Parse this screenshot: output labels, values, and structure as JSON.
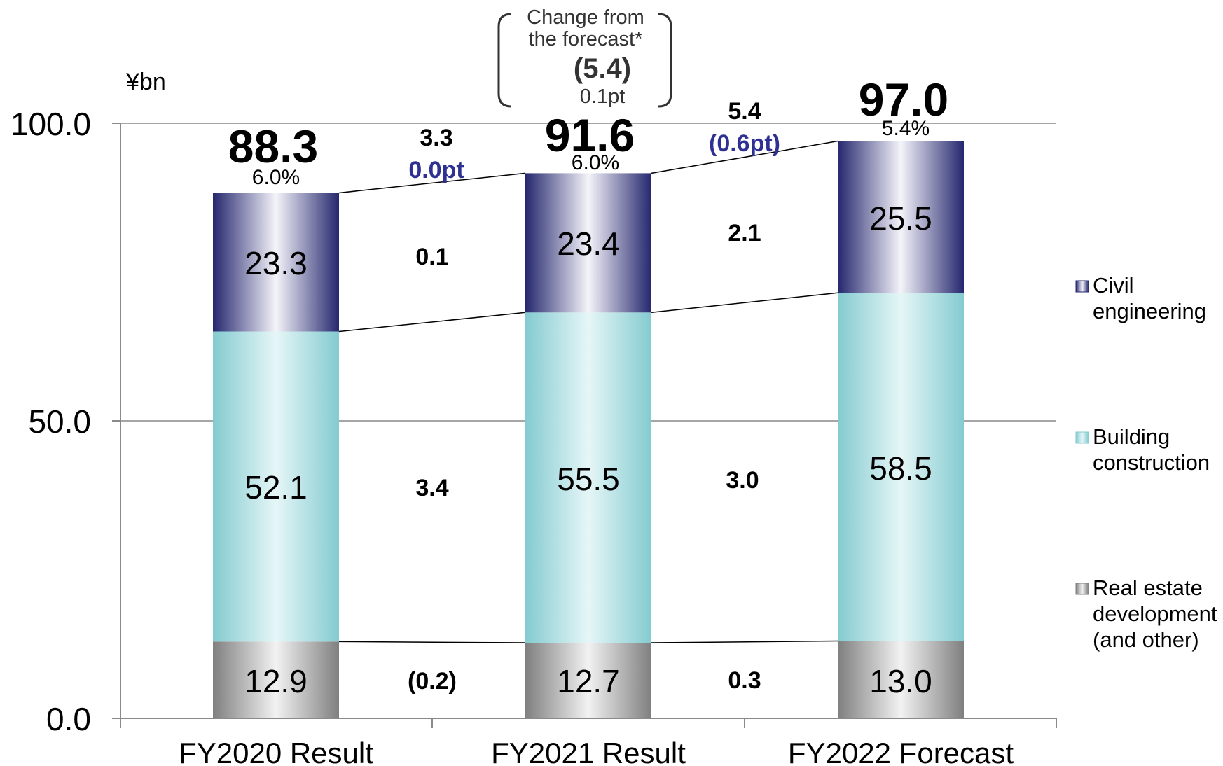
{
  "chart_data": {
    "type": "bar",
    "stacked": true,
    "unit_label": "¥bn",
    "ylim": [
      0,
      100
    ],
    "y_ticks": [
      "0.0",
      "50.0",
      "100.0"
    ],
    "grid": true,
    "legend_position": "right",
    "categories": [
      "FY2020 Result",
      "FY2021 Result",
      "FY2022 Forecast"
    ],
    "series": [
      {
        "name": "Real estate development (and other)",
        "legend_lines": [
          "Real estate",
          "development",
          "(and other)"
        ],
        "values": [
          12.9,
          12.7,
          13.0
        ],
        "labels": [
          "12.9",
          "12.7",
          "13.0"
        ],
        "color": "#8c8c8c"
      },
      {
        "name": "Building construction",
        "legend_lines": [
          "Building",
          "construction"
        ],
        "values": [
          52.1,
          55.5,
          58.5
        ],
        "labels": [
          "52.1",
          "55.5",
          "58.5"
        ],
        "color": "#8fd0d4"
      },
      {
        "name": "Civil engineering",
        "legend_lines": [
          "Civil",
          "engineering"
        ],
        "values": [
          23.3,
          23.4,
          25.5
        ],
        "labels": [
          "23.3",
          "23.4",
          "25.5"
        ],
        "color": "#2b2d7a"
      }
    ],
    "totals": [
      {
        "value": 88.3,
        "label": "88.3",
        "margin": "6.0%"
      },
      {
        "value": 91.6,
        "label": "91.6",
        "margin": "6.0%"
      },
      {
        "value": 97.0,
        "label": "97.0",
        "margin": "5.4%"
      }
    ],
    "changes": [
      {
        "total": "3.3",
        "margin_change": "0.0pt",
        "segments": [
          "(0.2)",
          "3.4",
          "0.1"
        ]
      },
      {
        "total": "5.4",
        "margin_change": "(0.6pt)",
        "segments": [
          "0.3",
          "3.0",
          "2.1"
        ]
      }
    ],
    "callout": {
      "lines": [
        "Change from",
        "the forecast*"
      ],
      "value": "(5.4)",
      "pt": "0.1pt"
    },
    "colors": {
      "civil_dark": "#25276e",
      "building": "#8fd0d4",
      "realestate": "#8c8c8c",
      "change_pt": "#2e3192",
      "grid": "#a6a6a6"
    }
  }
}
